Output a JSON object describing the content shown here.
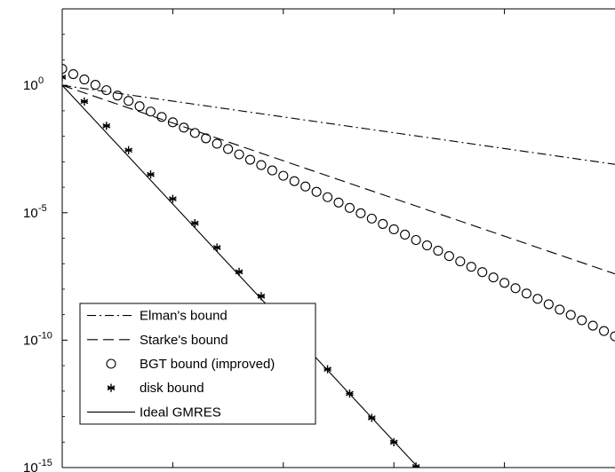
{
  "chart_data": {
    "type": "line",
    "title": "",
    "xlabel": "",
    "ylabel": "",
    "xlim": [
      0,
      50
    ],
    "ylim_log10": [
      -15,
      3
    ],
    "yscale": "log",
    "grid": false,
    "legend_position": "bottom-left",
    "x_ticks": [
      "0",
      "10",
      "20",
      "30",
      "40"
    ],
    "y_ticks": [
      {
        "base": "10",
        "exp": "0",
        "log10": 0
      },
      {
        "base": "10",
        "exp": "-5",
        "log10": -5
      },
      {
        "base": "10",
        "exp": "-10",
        "log10": -10
      },
      {
        "base": "10",
        "exp": "-15",
        "log10": -15
      }
    ],
    "series": [
      {
        "name": "Elman's bound",
        "style": "dash-dot",
        "marker": "none",
        "x": [
          0,
          50
        ],
        "log10_y": [
          0,
          -3.1
        ]
      },
      {
        "name": "Starke's bound",
        "style": "dashed",
        "marker": "none",
        "x": [
          0,
          50
        ],
        "log10_y": [
          0,
          -7.4
        ]
      },
      {
        "name": "BGT bound (improved)",
        "style": "none",
        "marker": "circle",
        "x_start": 0,
        "x_step": 1,
        "x_end": 50,
        "log10_y_start": 0.65,
        "log10_y_slope": -0.21
      },
      {
        "name": "disk bound",
        "style": "none",
        "marker": "asterisk",
        "x_start": 0,
        "x_step": 2,
        "x_end": 32,
        "log10_y_start": 0.32,
        "log10_y_slope": -0.4775
      },
      {
        "name": "Ideal GMRES",
        "style": "solid",
        "marker": "none",
        "x": [
          0,
          32.2
        ],
        "log10_y": [
          0,
          -15
        ]
      }
    ]
  }
}
